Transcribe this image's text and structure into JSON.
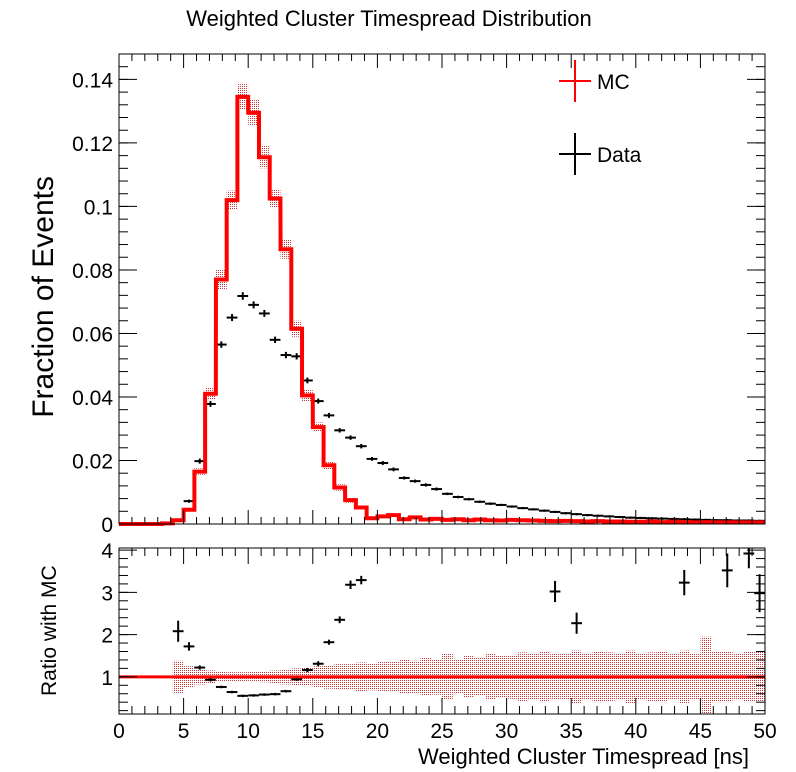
{
  "chart_data": [
    {
      "type": "histogram",
      "title": "Weighted Cluster Timespread Distribution",
      "xlabel": "",
      "ylabel": "Fraction of Events",
      "xlim": [
        0,
        50
      ],
      "ylim": [
        0,
        0.148
      ],
      "yticks": [
        "0",
        "0.02",
        "0.04",
        "0.06",
        "0.08",
        "0.1",
        "0.12",
        "0.14"
      ],
      "ytick_values": [
        0,
        0.02,
        0.04,
        0.06,
        0.08,
        0.1,
        0.12,
        0.14
      ],
      "bin_width": 0.833,
      "legend": {
        "placement": "top-right",
        "entries": [
          "MC",
          "Data"
        ]
      },
      "colors": {
        "mc": "#ff0000",
        "data": "#000000",
        "band": "#cc3333"
      },
      "series": [
        {
          "name": "MC",
          "style": "step",
          "bin_centers": [
            0.42,
            1.25,
            2.08,
            2.92,
            3.75,
            4.58,
            5.42,
            6.25,
            7.08,
            7.92,
            8.75,
            9.58,
            10.42,
            11.25,
            12.08,
            12.92,
            13.75,
            14.58,
            15.42,
            16.25,
            17.08,
            17.92,
            18.75,
            19.58,
            20.42,
            21.25,
            22.08,
            22.92,
            23.75,
            24.58,
            25.42,
            26.25,
            27.08,
            27.92,
            28.75,
            29.58,
            30.42,
            31.25,
            32.08,
            32.92,
            33.75,
            34.58,
            35.42,
            36.25,
            37.08,
            37.92,
            38.75,
            39.58,
            40.42,
            41.25,
            42.08,
            42.92,
            43.75,
            44.58,
            45.42,
            46.25,
            47.08,
            47.92,
            48.75,
            49.58
          ],
          "values": [
            0,
            0,
            0,
            0,
            0.0002,
            0.0012,
            0.0045,
            0.0165,
            0.041,
            0.077,
            0.102,
            0.1345,
            0.1295,
            0.1155,
            0.1025,
            0.0865,
            0.0615,
            0.0405,
            0.0305,
            0.0185,
            0.0115,
            0.0075,
            0.0052,
            0.0018,
            0.0024,
            0.0028,
            0.0015,
            0.0021,
            0.0014,
            0.0016,
            0.0013,
            0.0015,
            0.0012,
            0.0014,
            0.0012,
            0.0011,
            0.0013,
            0.0012,
            0.0011,
            0.001,
            0.0009,
            0.001,
            0.0009,
            0.0008,
            0.0009,
            0.0008,
            0.0008,
            0.0007,
            0.0007,
            0.0008,
            0.0006,
            0.0007,
            0.0006,
            0.0005,
            0.0006,
            0.0005,
            0.0005,
            0.0005,
            0.0005,
            0.0005
          ],
          "band_halfwidth": [
            0,
            0,
            0,
            0,
            0.0001,
            0.0003,
            0.0006,
            0.001,
            0.002,
            0.003,
            0.003,
            0.004,
            0.004,
            0.0035,
            0.003,
            0.003,
            0.0025,
            0.002,
            0.0015,
            0.0012,
            0.001,
            0.0008,
            0.0007,
            0.0005,
            0.0005,
            0.0005,
            0.0004,
            0.0004,
            0.0004,
            0.0004,
            0.0004,
            0.0004,
            0.0003,
            0.0003,
            0.0003,
            0.0003,
            0.0003,
            0.0003,
            0.0003,
            0.0003,
            0.0003,
            0.0003,
            0.0003,
            0.0003,
            0.0003,
            0.0003,
            0.0003,
            0.0003,
            0.0003,
            0.0003,
            0.0003,
            0.0003,
            0.0003,
            0.0003,
            0.0003,
            0.0003,
            0.0003,
            0.0003,
            0.0003,
            0.0003
          ]
        },
        {
          "name": "Data",
          "style": "points",
          "bin_centers": [
            3.75,
            4.58,
            5.42,
            6.25,
            7.08,
            7.92,
            8.75,
            9.58,
            10.42,
            11.25,
            12.08,
            12.92,
            13.75,
            14.58,
            15.42,
            16.25,
            17.08,
            17.92,
            18.75,
            19.58,
            20.42,
            21.25,
            22.08,
            22.92,
            23.75,
            24.58,
            25.42,
            26.25,
            27.08,
            27.92,
            28.75,
            29.58,
            30.42,
            31.25,
            32.08,
            32.92,
            33.75,
            34.58,
            35.42,
            36.25,
            37.08,
            37.92,
            38.75,
            39.58,
            40.42,
            41.25,
            42.08,
            42.92,
            43.75,
            44.58,
            45.42,
            46.25,
            47.08,
            47.92,
            48.75,
            49.58
          ],
          "values": [
            0.0002,
            0.0012,
            0.0072,
            0.0198,
            0.0378,
            0.0565,
            0.065,
            0.0718,
            0.069,
            0.0663,
            0.058,
            0.0532,
            0.0528,
            0.0452,
            0.0387,
            0.0342,
            0.0295,
            0.0272,
            0.0245,
            0.0205,
            0.0192,
            0.0172,
            0.0145,
            0.0135,
            0.0123,
            0.011,
            0.0095,
            0.0085,
            0.0078,
            0.007,
            0.0064,
            0.006,
            0.0055,
            0.005,
            0.0046,
            0.0042,
            0.0038,
            0.0034,
            0.0031,
            0.0028,
            0.0026,
            0.0024,
            0.0022,
            0.002,
            0.0019,
            0.0018,
            0.0017,
            0.0016,
            0.0015,
            0.0014,
            0.0013,
            0.0012,
            0.0012,
            0.0011,
            0.0011,
            0.001
          ],
          "errors": [
            0.0001,
            0.0002,
            0.0005,
            0.0008,
            0.0009,
            0.001,
            0.0011,
            0.0012,
            0.0011,
            0.0011,
            0.001,
            0.001,
            0.001,
            0.0009,
            0.0008,
            0.0008,
            0.0007,
            0.0007,
            0.0007,
            0.0006,
            0.0006,
            0.0006,
            0.0005,
            0.0005,
            0.0005,
            0.0005,
            0.0004,
            0.0004,
            0.0004,
            0.0004,
            0.0004,
            0.0003,
            0.0003,
            0.0003,
            0.0003,
            0.0003,
            0.0003,
            0.0003,
            0.0003,
            0.0003,
            0.0002,
            0.0002,
            0.0002,
            0.0002,
            0.0002,
            0.0002,
            0.0002,
            0.0002,
            0.0002,
            0.0002,
            0.0002,
            0.0002,
            0.0002,
            0.0002,
            0.0002,
            0.0002
          ]
        }
      ]
    },
    {
      "type": "scatter",
      "title": "",
      "xlabel": "Weighted Cluster Timespread [ns]",
      "ylabel": "Ratio with MC",
      "xlim": [
        0,
        50
      ],
      "ylim": [
        0.12,
        4.05
      ],
      "xticks": [
        "0",
        "5",
        "10",
        "15",
        "20",
        "25",
        "30",
        "35",
        "40",
        "45",
        "50"
      ],
      "xtick_values": [
        0,
        5,
        10,
        15,
        20,
        25,
        30,
        35,
        40,
        45,
        50
      ],
      "yticks": [
        "1",
        "2",
        "3",
        "4"
      ],
      "ytick_values": [
        1,
        2,
        3,
        4
      ],
      "reference_line": 1,
      "series": [
        {
          "name": "Ratio with MC",
          "x": [
            4.58,
            5.42,
            6.25,
            7.08,
            7.92,
            8.75,
            9.58,
            10.42,
            11.25,
            12.08,
            12.92,
            13.75,
            14.58,
            15.42,
            16.25,
            17.08,
            17.92,
            18.75,
            33.75,
            35.42,
            43.75,
            47.08,
            48.75,
            49.58
          ],
          "y": [
            2.08,
            1.72,
            1.22,
            0.93,
            0.76,
            0.64,
            0.55,
            0.56,
            0.58,
            0.59,
            0.66,
            0.94,
            1.16,
            1.31,
            1.82,
            2.35,
            3.18,
            3.29,
            3.02,
            2.27,
            3.23,
            3.52,
            3.92,
            2.98
          ],
          "errors": [
            0.25,
            0.1,
            0.05,
            0.04,
            0.03,
            0.03,
            0.03,
            0.03,
            0.03,
            0.03,
            0.03,
            0.04,
            0.05,
            0.06,
            0.06,
            0.08,
            0.1,
            0.1,
            0.25,
            0.25,
            0.3,
            0.4,
            0.35,
            0.45
          ]
        }
      ],
      "ratio_band_halfwidth": [
        0,
        0,
        0,
        0,
        0,
        0.38,
        0.25,
        0.18,
        0.15,
        0.12,
        0.11,
        0.11,
        0.12,
        0.13,
        0.15,
        0.18,
        0.2,
        0.22,
        0.25,
        0.28,
        0.3,
        0.3,
        0.34,
        0.32,
        0.35,
        0.36,
        0.4,
        0.38,
        0.45,
        0.42,
        0.55,
        0.4,
        0.5,
        0.45,
        0.55,
        0.5,
        0.52,
        0.58,
        0.55,
        0.6,
        0.55,
        0.55,
        0.62,
        0.55,
        0.6,
        0.58,
        0.55,
        0.62,
        0.55,
        0.58,
        0.6,
        0.55,
        0.62,
        0.55,
        0.95,
        0.6,
        0.6,
        0.55,
        0.6,
        0.6
      ]
    }
  ]
}
